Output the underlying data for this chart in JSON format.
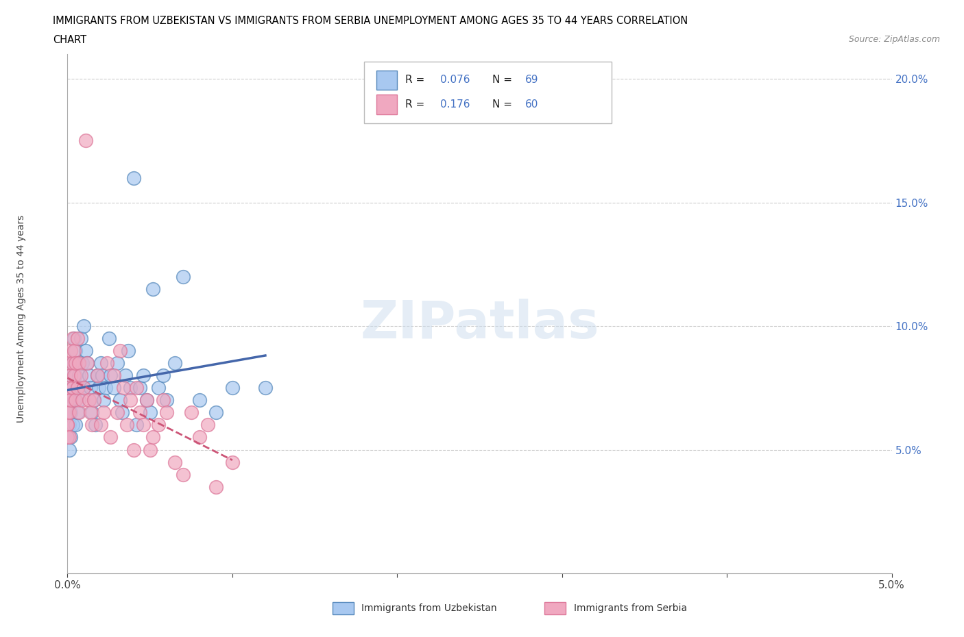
{
  "title_line1": "IMMIGRANTS FROM UZBEKISTAN VS IMMIGRANTS FROM SERBIA UNEMPLOYMENT AMONG AGES 35 TO 44 YEARS CORRELATION",
  "title_line2": "CHART",
  "source": "Source: ZipAtlas.com",
  "ylabel": "Unemployment Among Ages 35 to 44 years",
  "xlim": [
    0.0,
    0.05
  ],
  "ylim": [
    0.0,
    0.21
  ],
  "yticks": [
    0.05,
    0.1,
    0.15,
    0.2
  ],
  "ytick_labels": [
    "5.0%",
    "10.0%",
    "15.0%",
    "20.0%"
  ],
  "watermark": "ZIPatlas",
  "color_uzbekistan": "#a8c8f0",
  "color_serbia": "#f0a8c0",
  "edge_uzbekistan": "#5588bb",
  "edge_serbia": "#dd7799",
  "trendline_color_uzbekistan": "#4466aa",
  "trendline_color_serbia": "#cc5577",
  "uzbekistan_x": [
    0.0,
    0.0,
    0.0,
    0.0,
    0.0,
    0.0001,
    0.0001,
    0.0001,
    0.0001,
    0.0002,
    0.0002,
    0.0002,
    0.0002,
    0.0003,
    0.0003,
    0.0003,
    0.0004,
    0.0004,
    0.0004,
    0.0005,
    0.0005,
    0.0005,
    0.0006,
    0.0006,
    0.0007,
    0.0007,
    0.0008,
    0.0008,
    0.0009,
    0.001,
    0.001,
    0.0011,
    0.0012,
    0.0013,
    0.0014,
    0.0015,
    0.0016,
    0.0017,
    0.0018,
    0.0019,
    0.002,
    0.0021,
    0.0022,
    0.0023,
    0.0025,
    0.0026,
    0.0028,
    0.003,
    0.0032,
    0.0033,
    0.0035,
    0.0037,
    0.0038,
    0.004,
    0.0042,
    0.0044,
    0.0046,
    0.0048,
    0.005,
    0.0052,
    0.0055,
    0.0058,
    0.006,
    0.0065,
    0.007,
    0.008,
    0.009,
    0.01,
    0.012
  ],
  "uzbekistan_y": [
    0.065,
    0.06,
    0.055,
    0.07,
    0.06,
    0.075,
    0.065,
    0.06,
    0.05,
    0.08,
    0.07,
    0.065,
    0.055,
    0.075,
    0.085,
    0.06,
    0.095,
    0.085,
    0.07,
    0.09,
    0.08,
    0.06,
    0.085,
    0.065,
    0.08,
    0.07,
    0.095,
    0.075,
    0.085,
    0.1,
    0.075,
    0.09,
    0.085,
    0.08,
    0.075,
    0.065,
    0.07,
    0.06,
    0.08,
    0.075,
    0.085,
    0.08,
    0.07,
    0.075,
    0.095,
    0.08,
    0.075,
    0.085,
    0.07,
    0.065,
    0.08,
    0.09,
    0.075,
    0.16,
    0.06,
    0.075,
    0.08,
    0.07,
    0.065,
    0.115,
    0.075,
    0.08,
    0.07,
    0.085,
    0.12,
    0.07,
    0.065,
    0.075,
    0.075
  ],
  "serbia_x": [
    0.0,
    0.0,
    0.0,
    0.0,
    0.0,
    0.0001,
    0.0001,
    0.0001,
    0.0001,
    0.0002,
    0.0002,
    0.0002,
    0.0003,
    0.0003,
    0.0003,
    0.0004,
    0.0004,
    0.0005,
    0.0005,
    0.0006,
    0.0006,
    0.0007,
    0.0007,
    0.0008,
    0.0009,
    0.001,
    0.0011,
    0.0012,
    0.0013,
    0.0014,
    0.0015,
    0.0016,
    0.0018,
    0.002,
    0.0022,
    0.0024,
    0.0026,
    0.0028,
    0.003,
    0.0032,
    0.0034,
    0.0036,
    0.0038,
    0.004,
    0.0042,
    0.0044,
    0.0046,
    0.0048,
    0.005,
    0.0052,
    0.0055,
    0.0058,
    0.006,
    0.0065,
    0.007,
    0.0075,
    0.008,
    0.0085,
    0.009,
    0.01
  ],
  "serbia_y": [
    0.06,
    0.055,
    0.065,
    0.07,
    0.06,
    0.075,
    0.085,
    0.065,
    0.055,
    0.09,
    0.08,
    0.07,
    0.095,
    0.085,
    0.075,
    0.09,
    0.08,
    0.085,
    0.07,
    0.095,
    0.075,
    0.085,
    0.065,
    0.08,
    0.07,
    0.075,
    0.175,
    0.085,
    0.07,
    0.065,
    0.06,
    0.07,
    0.08,
    0.06,
    0.065,
    0.085,
    0.055,
    0.08,
    0.065,
    0.09,
    0.075,
    0.06,
    0.07,
    0.05,
    0.075,
    0.065,
    0.06,
    0.07,
    0.05,
    0.055,
    0.06,
    0.07,
    0.065,
    0.045,
    0.04,
    0.065,
    0.055,
    0.06,
    0.035,
    0.045
  ]
}
